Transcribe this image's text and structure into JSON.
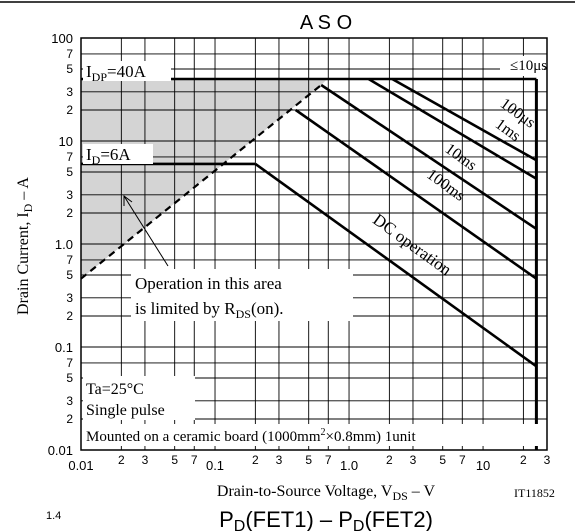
{
  "chart_data": {
    "type": "line",
    "title": "A S O",
    "xlabel": {
      "pre": "Drain-to-Source Voltage,  V",
      "sub": "DS",
      "post": "  –  V"
    },
    "ylabel": {
      "pre": "Drain Current,  I",
      "sub": "D",
      "post": "  –  A"
    },
    "x_scale": "log",
    "y_scale": "log",
    "xlim": [
      0.01,
      30
    ],
    "ylim": [
      0.01,
      100
    ],
    "grid": true,
    "x_major_ticks": [
      {
        "value": 0.01,
        "label": "0.01"
      },
      {
        "value": 0.1,
        "label": "0.1"
      },
      {
        "value": 1,
        "label": "1.0"
      },
      {
        "value": 10,
        "label": "10"
      }
    ],
    "x_minor_ticks": [
      {
        "value": 0.02,
        "label": "2"
      },
      {
        "value": 0.03,
        "label": "3"
      },
      {
        "value": 0.05,
        "label": "5"
      },
      {
        "value": 0.07,
        "label": "7"
      },
      {
        "value": 0.2,
        "label": "2"
      },
      {
        "value": 0.3,
        "label": "3"
      },
      {
        "value": 0.5,
        "label": "5"
      },
      {
        "value": 0.7,
        "label": "7"
      },
      {
        "value": 2,
        "label": "2"
      },
      {
        "value": 3,
        "label": "3"
      },
      {
        "value": 5,
        "label": "5"
      },
      {
        "value": 7,
        "label": "7"
      },
      {
        "value": 20,
        "label": "2"
      },
      {
        "value": 30,
        "label": "3"
      }
    ],
    "y_major_ticks": [
      {
        "value": 0.01,
        "label": "0.01"
      },
      {
        "value": 0.1,
        "label": "0.1"
      },
      {
        "value": 1,
        "label": "1.0"
      },
      {
        "value": 10,
        "label": "10"
      },
      {
        "value": 100,
        "label": "100"
      }
    ],
    "y_minor_ticks": [
      {
        "value": 0.02,
        "label": "2"
      },
      {
        "value": 0.03,
        "label": "3"
      },
      {
        "value": 0.05,
        "label": "5"
      },
      {
        "value": 0.07,
        "label": "7"
      },
      {
        "value": 0.2,
        "label": "2"
      },
      {
        "value": 0.3,
        "label": "3"
      },
      {
        "value": 0.5,
        "label": "5"
      },
      {
        "value": 0.7,
        "label": "7"
      },
      {
        "value": 2,
        "label": "2"
      },
      {
        "value": 3,
        "label": "3"
      },
      {
        "value": 5,
        "label": "5"
      },
      {
        "value": 7,
        "label": "7"
      },
      {
        "value": 20,
        "label": "2"
      },
      {
        "value": 30,
        "label": "3"
      },
      {
        "value": 50,
        "label": "5"
      },
      {
        "value": 70,
        "label": "7"
      }
    ],
    "series": [
      {
        "key": "idp_limit",
        "x": [
          0.01,
          25
        ],
        "y": [
          40,
          40
        ]
      },
      {
        "key": "id_limit",
        "x": [
          0.01,
          0.2
        ],
        "y": [
          6,
          6
        ]
      },
      {
        "key": "rds_on_limit",
        "x": [
          0.01,
          0.62
        ],
        "y": [
          0.46,
          35
        ]
      },
      {
        "key": "pw_10us",
        "x": [
          2.1,
          25
        ],
        "y": [
          40,
          6.5
        ]
      },
      {
        "key": "pw_100us",
        "x": [
          25
        ],
        "y": [
          40
        ]
      },
      {
        "key": "pw_1ms",
        "x": [
          1.4,
          25
        ],
        "y": [
          40,
          4.3
        ]
      },
      {
        "key": "pw_10ms",
        "x": [
          0.62,
          25
        ],
        "y": [
          35,
          1.4
        ]
      },
      {
        "key": "pw_100ms",
        "x": [
          0.4,
          25
        ],
        "y": [
          20,
          0.46
        ]
      },
      {
        "key": "dc",
        "x": [
          0.2,
          25
        ],
        "y": [
          6,
          0.065
        ]
      },
      {
        "key": "vdss_limit",
        "x": [
          25,
          25
        ],
        "y": [
          0.01,
          40
        ]
      }
    ],
    "curve_labels": {
      "pw_10us": "≤10μs",
      "pw_100us": "100μs",
      "pw_1ms": "1ms",
      "pw_10ms": "10ms",
      "pw_100ms": "100ms",
      "dc": "DC operation"
    },
    "annotations": {
      "idp": {
        "pre": "I",
        "sub": "DP",
        "post": "=40A"
      },
      "id": {
        "pre": "I",
        "sub": "D",
        "post": "=6A"
      },
      "area_line1": "Operation in this area",
      "area_line2": {
        "pre": "is limited by R",
        "sub": "DS",
        "post": "(on)."
      },
      "ta": "Ta=25°C",
      "pulse": "Single pulse",
      "board": {
        "pre": "Mounted on a ceramic board (1000mm",
        "sup": "2",
        "post": "×0.8mm) 1unit"
      },
      "code": "IT11852"
    },
    "shaded_region": "below I_DP and above R_DS(on) limit"
  },
  "next_chart_title": {
    "pre1": "P",
    "sub1": "D",
    "mid": "(FET1)  –  P",
    "sub2": "D",
    "post": "(FET2)"
  },
  "next_chart_tick": "1.4"
}
